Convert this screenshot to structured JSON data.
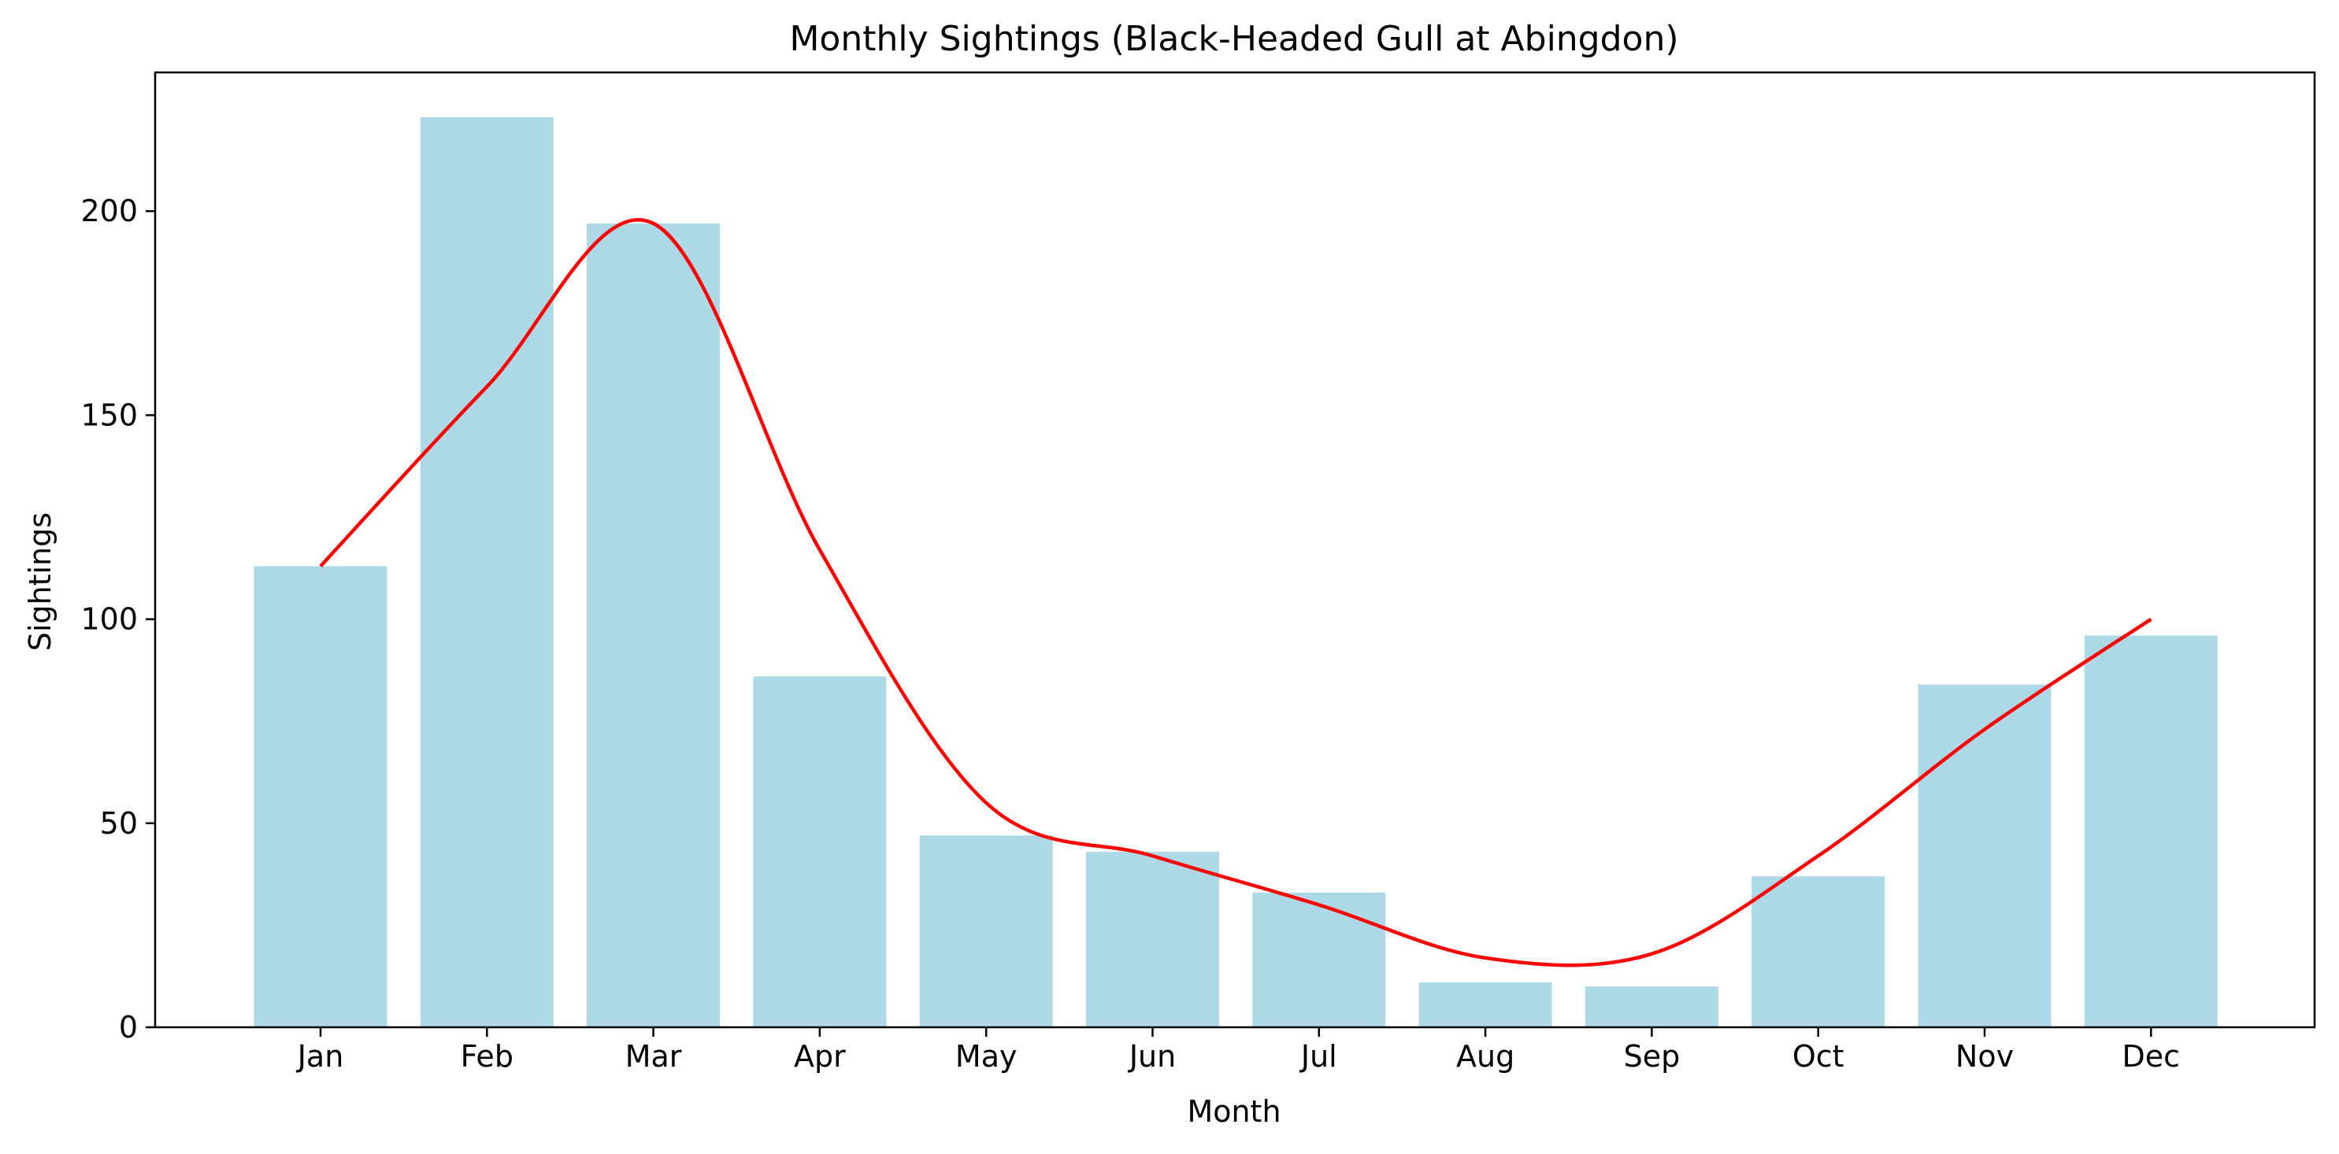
{
  "chart_data": {
    "type": "bar",
    "title": "Monthly Sightings (Black-Headed Gull at Abingdon)",
    "xlabel": "Month",
    "ylabel": "Sightings",
    "categories": [
      "Jan",
      "Feb",
      "Mar",
      "Apr",
      "May",
      "Jun",
      "Jul",
      "Aug",
      "Sep",
      "Oct",
      "Nov",
      "Dec"
    ],
    "series": [
      {
        "type": "bar",
        "values": [
          113,
          223,
          197,
          86,
          47,
          43,
          33,
          11,
          10,
          37,
          84,
          96
        ],
        "color": "#add8e6"
      },
      {
        "type": "line",
        "values": [
          113,
          157,
          197,
          117,
          55,
          42,
          30,
          17,
          18,
          42,
          73,
          100
        ],
        "color": "#ff0000"
      }
    ],
    "ylim": [
      0,
      234
    ],
    "yticks": [
      0,
      50,
      100,
      150,
      200
    ],
    "grid": false,
    "legend": "none"
  }
}
